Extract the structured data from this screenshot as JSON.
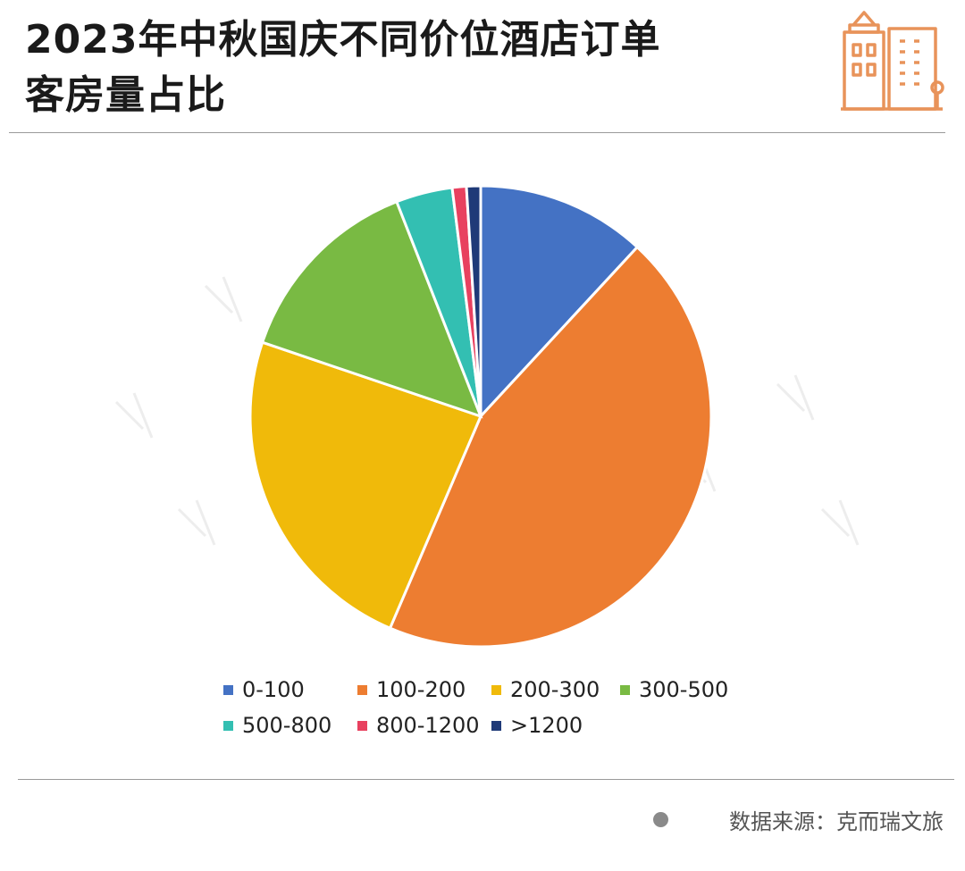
{
  "header": {
    "title_line1": "2023年中秋国庆不同价位酒店订单",
    "title_line2": "客房量占比"
  },
  "logo": {
    "icon": "city-buildings-icon",
    "color": "#E8935A"
  },
  "footer": {
    "source": "数据来源：克而瑞文旅"
  },
  "chart_data": {
    "type": "pie",
    "title": "2023年中秋国庆不同价位酒店订单客房量占比",
    "categories": [
      "0-100",
      "100-200",
      "200-300",
      "300-500",
      "500-800",
      "800-1200",
      ">1200"
    ],
    "values": [
      12,
      45,
      24,
      14,
      4,
      1,
      1
    ],
    "colors": [
      "#4472C4",
      "#ED7D31",
      "#F0BA0A",
      "#79BA43",
      "#33BFB2",
      "#E8415F",
      "#1F3A78"
    ],
    "legend_position": "bottom",
    "start_angle_deg": 0,
    "direction": "clockwise"
  }
}
